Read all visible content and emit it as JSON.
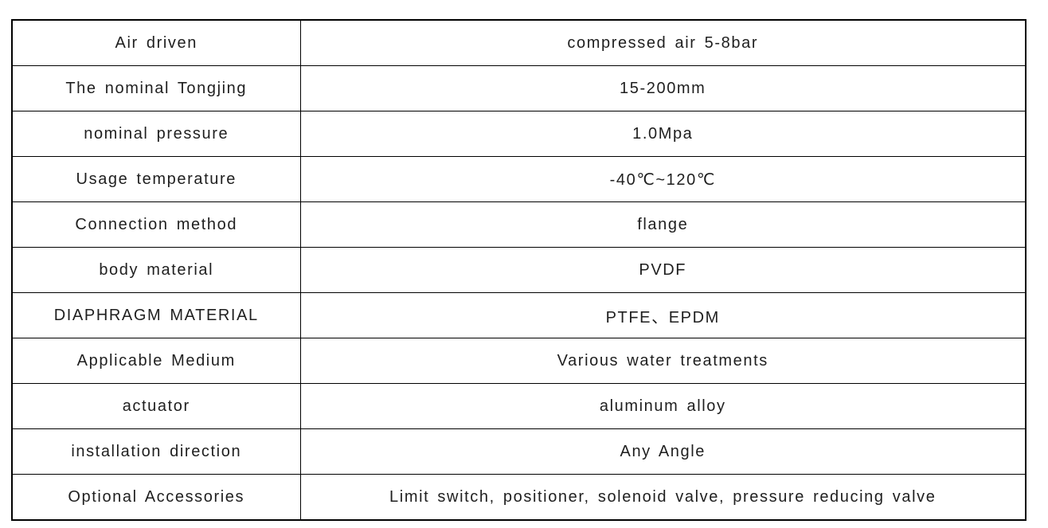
{
  "page": {
    "background_color": "#ffffff",
    "border_color": "#000000",
    "text_color": "#1f1f1f"
  },
  "spec_table": {
    "rows": [
      {
        "label": "Air driven",
        "value": "compressed air 5-8bar"
      },
      {
        "label": "The nominal Tongjing",
        "value": "15-200mm"
      },
      {
        "label": "nominal pressure",
        "value": "1.0Mpa"
      },
      {
        "label": "Usage temperature",
        "value": "-40℃~120℃"
      },
      {
        "label": "Connection method",
        "value": "flange"
      },
      {
        "label": "body material",
        "value": "PVDF"
      },
      {
        "label": "DIAPHRAGM MATERIAL",
        "value": "PTFE、EPDM"
      },
      {
        "label": "Applicable Medium",
        "value": "Various water treatments"
      },
      {
        "label": "actuator",
        "value": "aluminum alloy"
      },
      {
        "label": "installation direction",
        "value": "Any Angle"
      },
      {
        "label": "Optional Accessories",
        "value": "Limit switch, positioner, solenoid valve, pressure reducing valve"
      }
    ]
  }
}
